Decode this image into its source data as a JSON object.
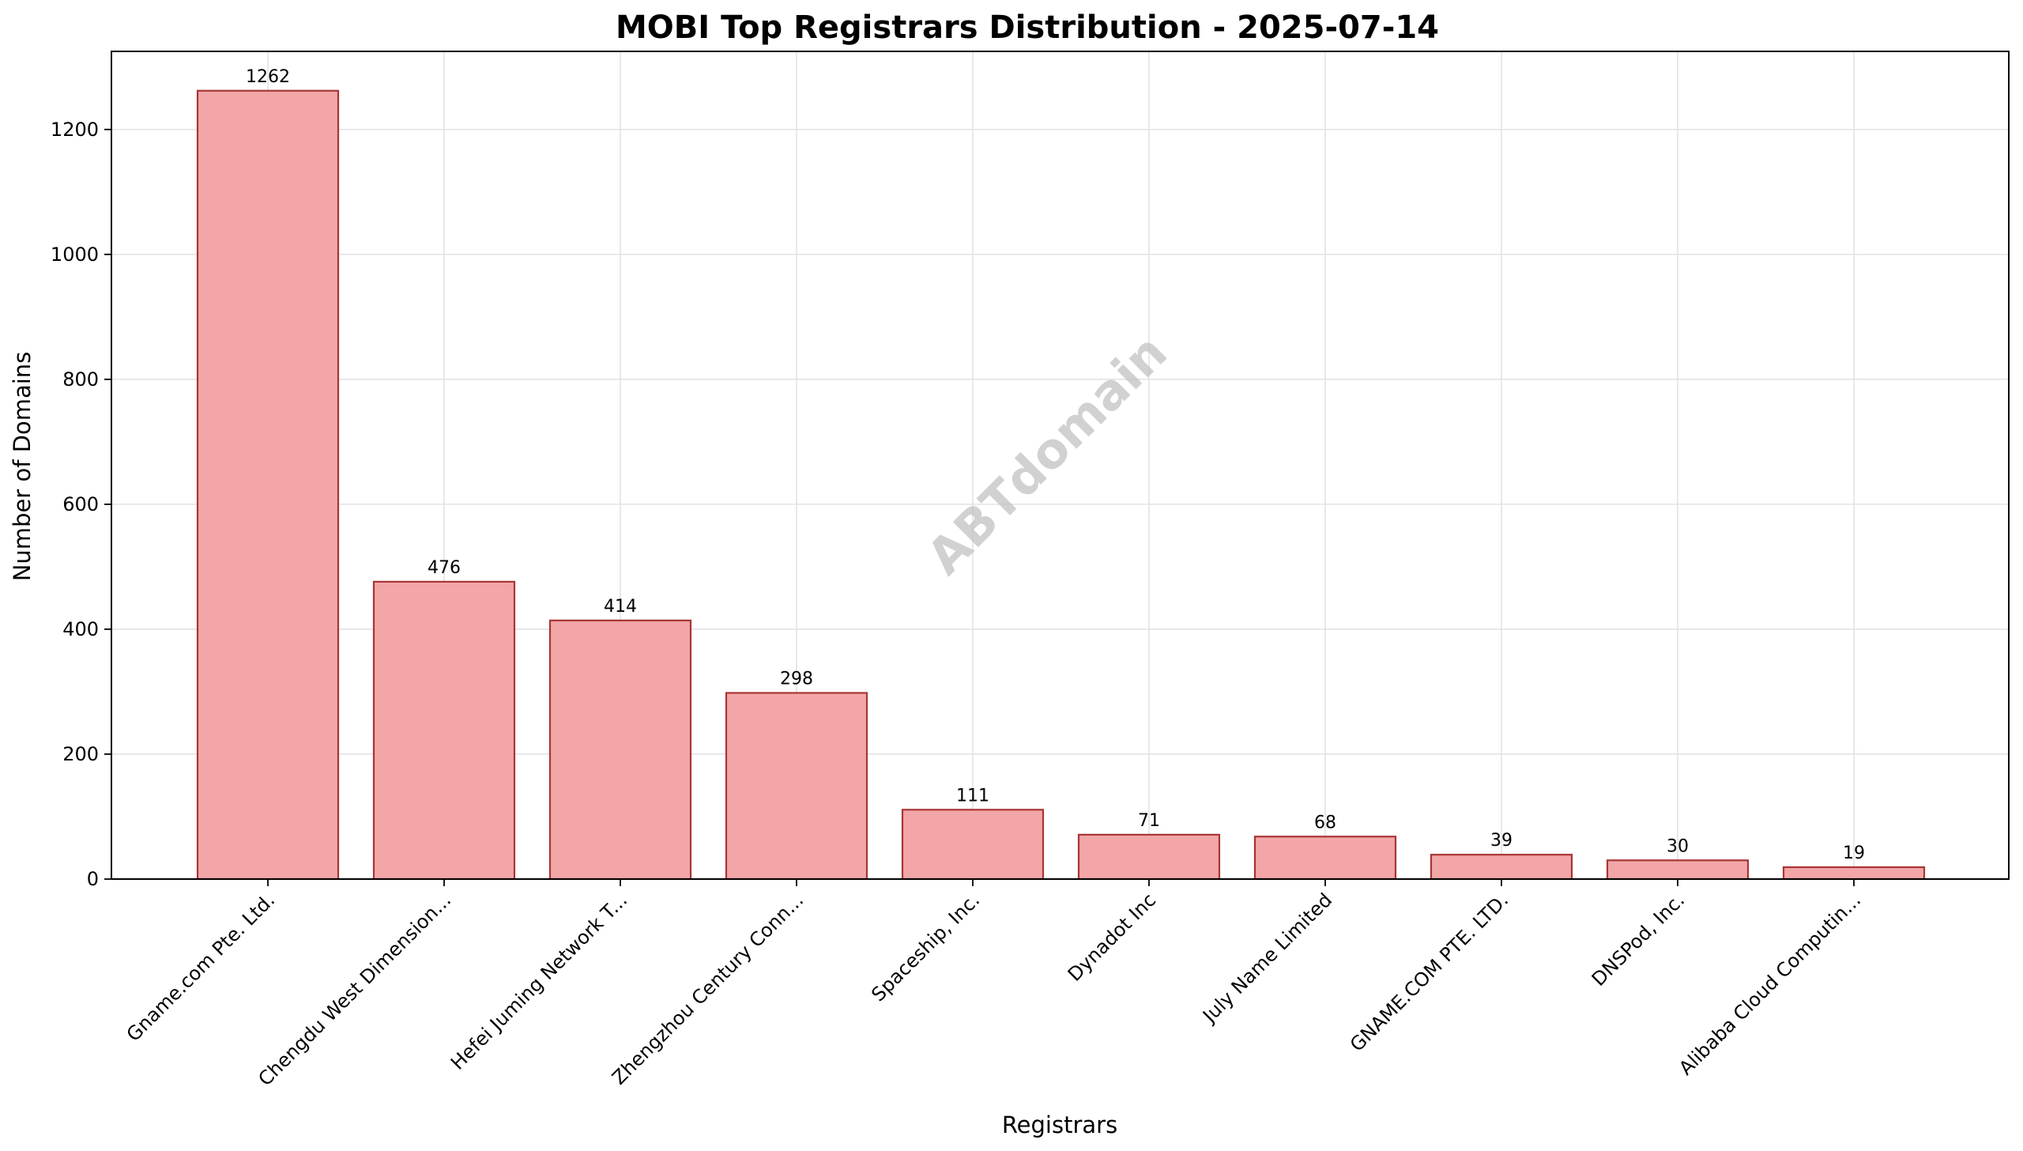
{
  "chart_data": {
    "type": "bar",
    "title": "MOBI Top Registrars Distribution - 2025-07-14",
    "xlabel": "Registrars",
    "ylabel": "Number of Domains",
    "categories": [
      "Gname.com Pte. Ltd.",
      "Chengdu West Dimension...",
      "Hefei Juming Network T...",
      "Zhengzhou Century Conn...",
      "Spaceship, Inc.",
      "Dynadot Inc",
      "July Name Limited",
      "GNAME.COM PTE. LTD.",
      "DNSPod, Inc.",
      "Alibaba Cloud Computin..."
    ],
    "values": [
      1262,
      476,
      414,
      298,
      111,
      71,
      68,
      39,
      30,
      19
    ],
    "ylim": [
      0,
      1325
    ],
    "yticks": [
      0,
      200,
      400,
      600,
      800,
      1000,
      1200
    ],
    "grid": true,
    "bar_color": "#f2a6a8",
    "bar_edge_color": "#a83535",
    "watermark": "ABTdomain"
  }
}
